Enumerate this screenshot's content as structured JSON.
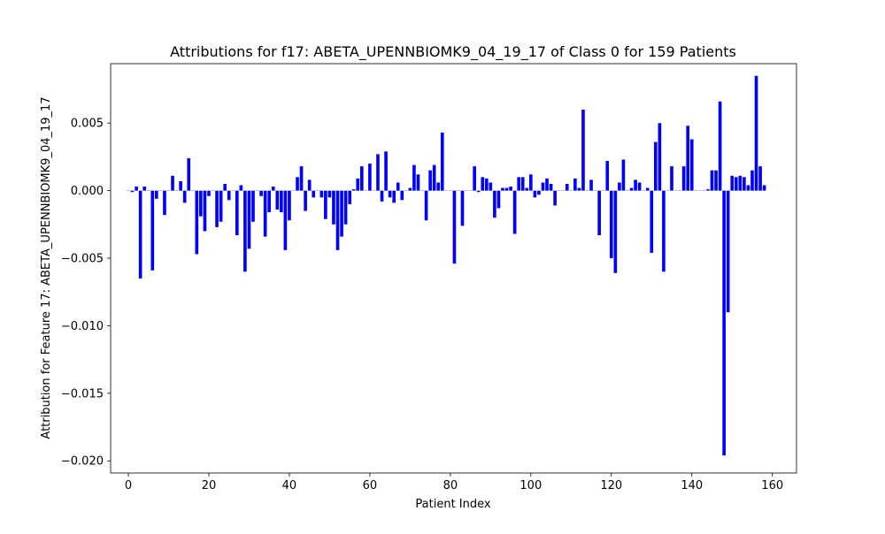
{
  "chart_data": {
    "type": "bar",
    "title": "Attributions for f17: ABETA_UPENNBIOMK9_04_19_17 of Class 0 for 159 Patients",
    "xlabel": "Patient Index",
    "ylabel": "Attribution for Feature 17: ABETA_UPENNBIOMK9_04_19_17",
    "xlim": [
      -4.4,
      166.0
    ],
    "ylim": [
      -0.0209,
      0.0094
    ],
    "xticks": [
      0,
      20,
      40,
      60,
      80,
      100,
      120,
      140,
      160
    ],
    "xtick_labels": [
      "0",
      "20",
      "40",
      "60",
      "80",
      "100",
      "120",
      "140",
      "160"
    ],
    "yticks": [
      -0.02,
      -0.015,
      -0.01,
      -0.005,
      0.0,
      0.005
    ],
    "ytick_labels": [
      "−0.020",
      "−0.015",
      "−0.010",
      "−0.005",
      "0.000",
      "0.005"
    ],
    "bar_color": "#0000ff",
    "grid": false,
    "x": [
      0,
      1,
      2,
      3,
      4,
      5,
      6,
      7,
      8,
      9,
      10,
      11,
      12,
      13,
      14,
      15,
      16,
      17,
      18,
      19,
      20,
      21,
      22,
      23,
      24,
      25,
      26,
      27,
      28,
      29,
      30,
      31,
      32,
      33,
      34,
      35,
      36,
      37,
      38,
      39,
      40,
      41,
      42,
      43,
      44,
      45,
      46,
      47,
      48,
      49,
      50,
      51,
      52,
      53,
      54,
      55,
      56,
      57,
      58,
      59,
      60,
      61,
      62,
      63,
      64,
      65,
      66,
      67,
      68,
      69,
      70,
      71,
      72,
      73,
      74,
      75,
      76,
      77,
      78,
      79,
      80,
      81,
      82,
      83,
      84,
      85,
      86,
      87,
      88,
      89,
      90,
      91,
      92,
      93,
      94,
      95,
      96,
      97,
      98,
      99,
      100,
      101,
      102,
      103,
      104,
      105,
      106,
      107,
      108,
      109,
      110,
      111,
      112,
      113,
      114,
      115,
      116,
      117,
      118,
      119,
      120,
      121,
      122,
      123,
      124,
      125,
      126,
      127,
      128,
      129,
      130,
      131,
      132,
      133,
      134,
      135,
      136,
      137,
      138,
      139,
      140,
      141,
      142,
      143,
      144,
      145,
      146,
      147,
      148,
      149,
      150,
      151,
      152,
      153,
      154,
      155,
      156,
      157,
      158
    ],
    "values": [
      0.0,
      -0.0001,
      0.0003,
      -0.0065,
      0.0003,
      0.0,
      -0.0059,
      -0.0006,
      0.0,
      -0.0018,
      0.0,
      0.0011,
      0.0,
      0.0007,
      -0.0009,
      0.0024,
      0.0,
      -0.0047,
      -0.0019,
      -0.003,
      -0.0004,
      0.0,
      -0.0027,
      -0.0023,
      0.0005,
      -0.0007,
      0.0,
      -0.0033,
      0.0004,
      -0.006,
      -0.0043,
      -0.0023,
      0.0,
      -0.0004,
      -0.0034,
      -0.0016,
      0.0003,
      -0.0014,
      -0.0016,
      -0.0044,
      -0.0022,
      0.0,
      0.001,
      0.0018,
      -0.0015,
      0.0008,
      -0.0005,
      0.0,
      -0.0005,
      -0.0021,
      -0.0005,
      -0.0025,
      -0.0044,
      -0.0034,
      -0.0025,
      -0.001,
      0.0001,
      0.0009,
      0.0018,
      0.0,
      0.002,
      0.0,
      0.0027,
      -0.0008,
      0.0029,
      -0.0005,
      -0.0009,
      0.0006,
      -0.0007,
      0.0,
      0.0002,
      0.0019,
      0.0012,
      0.0,
      -0.0022,
      0.0015,
      0.0019,
      0.0006,
      0.0043,
      0.0,
      0.0,
      -0.0054,
      0.0,
      -0.0026,
      0.0,
      0.0,
      0.0018,
      -0.0001,
      0.001,
      0.0009,
      0.0006,
      -0.002,
      -0.0013,
      0.0002,
      0.0002,
      0.0003,
      -0.0032,
      0.001,
      0.001,
      0.0002,
      0.0012,
      -0.0005,
      -0.0003,
      0.0006,
      0.0009,
      0.0005,
      -0.0011,
      0.0,
      0.0,
      0.0005,
      0.0,
      0.0009,
      0.0002,
      0.006,
      0.0,
      0.0008,
      0.0,
      -0.0033,
      0.0,
      0.0022,
      -0.005,
      -0.0061,
      0.0006,
      0.0023,
      0.0,
      0.0002,
      0.0008,
      0.0006,
      0.0,
      0.0002,
      -0.0046,
      0.0036,
      0.005,
      -0.006,
      0.0,
      0.0018,
      0.0,
      0.0,
      0.0018,
      0.0048,
      0.0038,
      0.0,
      0.0,
      0.0,
      0.0001,
      0.0015,
      0.0015,
      0.0066,
      -0.0196,
      -0.009,
      0.0011,
      0.001,
      0.0011,
      0.001,
      0.0004,
      0.0015,
      0.0085,
      0.0018,
      0.0004
    ]
  }
}
